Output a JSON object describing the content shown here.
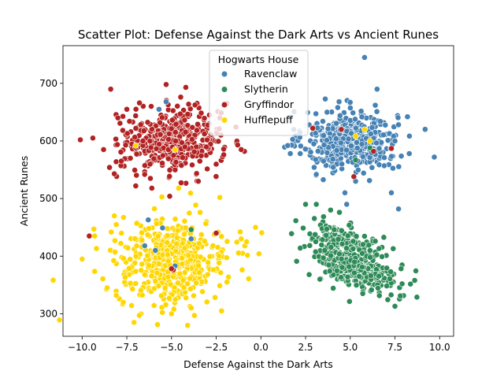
{
  "chart_data": {
    "type": "scatter",
    "title": "Scatter Plot: Defense Against the Dark Arts vs Ancient Runes",
    "xlabel": "Defense Against the Dark Arts",
    "ylabel": "Ancient Runes",
    "xlim": [
      -11.07,
      10.78
    ],
    "ylim": [
      260.9,
      765.4
    ],
    "xticks": [
      -10.0,
      -7.5,
      -5.0,
      -2.5,
      0.0,
      2.5,
      5.0,
      7.5,
      10.0
    ],
    "xtick_labels": [
      "−10.0",
      "−7.5",
      "−5.0",
      "−2.5",
      "0.0",
      "2.5",
      "5.0",
      "7.5",
      "10.0"
    ],
    "yticks": [
      300,
      400,
      500,
      600,
      700
    ],
    "ytick_labels": [
      "300",
      "400",
      "500",
      "600",
      "700"
    ],
    "grid": false,
    "legend": {
      "title": "Hogwarts House",
      "placement": "upper-center"
    },
    "series": [
      {
        "name": "Ravenclaw",
        "color": "#4682B4",
        "cluster": {
          "center": [
            5.0,
            600
          ],
          "spread": [
            1.3,
            26
          ],
          "n": 440
        },
        "points": [
          [
            5.8,
            745
          ],
          [
            6.5,
            690
          ],
          [
            2.7,
            628
          ],
          [
            3.7,
            650
          ],
          [
            2.2,
            578
          ],
          [
            3.1,
            542
          ],
          [
            4.7,
            510
          ],
          [
            4.8,
            490
          ],
          [
            7.3,
            510
          ],
          [
            7.7,
            482
          ],
          [
            8.3,
            578
          ],
          [
            9.7,
            572
          ],
          [
            8.2,
            642
          ],
          [
            6.4,
            662
          ],
          [
            4.3,
            658
          ],
          [
            5.3,
            530
          ],
          [
            1.5,
            592
          ],
          [
            6.9,
            557
          ],
          [
            7.5,
            600
          ],
          [
            3.5,
            565
          ],
          [
            -5.3,
            668
          ],
          [
            -6.5,
            418
          ],
          [
            -5.9,
            410
          ],
          [
            -6.3,
            463
          ],
          [
            -4.8,
            383
          ],
          [
            -5.5,
            449
          ],
          [
            -3.9,
            430
          ],
          [
            -5.7,
            655
          ]
        ]
      },
      {
        "name": "Slytherin",
        "color": "#2E8B57",
        "cluster": {
          "center": [
            5.2,
            395
          ],
          "spread": [
            1.2,
            28
          ],
          "n": 420
        },
        "points": [
          [
            2.2,
            414
          ],
          [
            2.0,
            391
          ],
          [
            2.5,
            490
          ],
          [
            3.1,
            490
          ],
          [
            2.7,
            368
          ],
          [
            3.3,
            360
          ],
          [
            3.9,
            480
          ],
          [
            5.7,
            335
          ],
          [
            7.5,
            313
          ],
          [
            7.8,
            331
          ],
          [
            7.9,
            352
          ],
          [
            7.4,
            413
          ],
          [
            6.4,
            426
          ],
          [
            4.1,
            446
          ],
          [
            -3.9,
            446
          ],
          [
            6.1,
            588
          ],
          [
            5.3,
            567
          ]
        ]
      },
      {
        "name": "Gryffindor",
        "color": "#B22222",
        "cluster": {
          "center": [
            -5.0,
            600
          ],
          "spread": [
            1.4,
            27
          ],
          "n": 430
        },
        "points": [
          [
            -10.1,
            602
          ],
          [
            -9.4,
            605
          ],
          [
            -8.4,
            690
          ],
          [
            -8.0,
            640
          ],
          [
            -7.5,
            655
          ],
          [
            -8.8,
            585
          ],
          [
            -8.2,
            543
          ],
          [
            -7.3,
            570
          ],
          [
            -7.0,
            522
          ],
          [
            -6.5,
            542
          ],
          [
            -6.1,
            518
          ],
          [
            -5.1,
            504
          ],
          [
            -3.5,
            530
          ],
          [
            -2.3,
            640
          ],
          [
            -1.9,
            665
          ],
          [
            -1.3,
            593
          ],
          [
            -5.3,
            698
          ],
          [
            -4.2,
            693
          ],
          [
            -9.6,
            435
          ],
          [
            -4.9,
            376
          ],
          [
            -5.0,
            378
          ],
          [
            -2.5,
            440
          ],
          [
            -6.6,
            600
          ],
          [
            6.3,
            582
          ],
          [
            5.2,
            538
          ],
          [
            2.9,
            622
          ],
          [
            4.5,
            620
          ],
          [
            7.3,
            587
          ]
        ]
      },
      {
        "name": "Hufflepuff",
        "color": "#FFD700",
        "cluster": {
          "center": [
            -5.0,
            390
          ],
          "spread": [
            1.6,
            36
          ],
          "n": 450
        },
        "points": [
          [
            -10.0,
            395
          ],
          [
            -9.3,
            435
          ],
          [
            -8.2,
            470
          ],
          [
            -7.8,
            440
          ],
          [
            -8.6,
            345
          ],
          [
            -7.7,
            320
          ],
          [
            -7.1,
            285
          ],
          [
            -6.8,
            297
          ],
          [
            -5.0,
            300
          ],
          [
            -3.9,
            310
          ],
          [
            -2.2,
            305
          ],
          [
            -1.9,
            355
          ],
          [
            -0.9,
            418
          ],
          [
            -0.8,
            425
          ],
          [
            -0.3,
            450
          ],
          [
            -2.3,
            502
          ],
          [
            -4.6,
            518
          ],
          [
            -3.4,
            476
          ],
          [
            -1.1,
            430
          ],
          [
            -4.8,
            585
          ],
          [
            -7.0,
            592
          ],
          [
            5.8,
            620
          ],
          [
            5.3,
            608
          ],
          [
            6.1,
            600
          ]
        ]
      }
    ]
  }
}
